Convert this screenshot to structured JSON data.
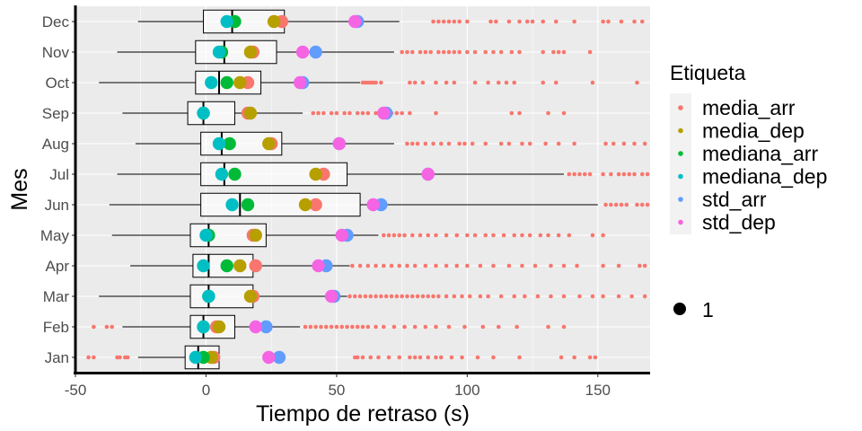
{
  "chart_data": {
    "type": "boxplot",
    "xlabel": "Tiempo de retraso (s)",
    "ylabel": "Mes",
    "xlim": [
      -50,
      170
    ],
    "x_ticks": [
      -50,
      0,
      50,
      100,
      150
    ],
    "x_tick_labels": [
      "-50",
      "0",
      "50",
      "100",
      "150"
    ],
    "grid": true,
    "legend_position": "right",
    "categories": [
      "Jan",
      "Feb",
      "Mar",
      "Apr",
      "May",
      "Jun",
      "Jul",
      "Aug",
      "Sep",
      "Oct",
      "Nov",
      "Dec"
    ],
    "boxes": [
      {
        "month": "Jan",
        "whisker_low": -26,
        "q1": -8,
        "median": -3,
        "q3": 5,
        "whisker_high": 5
      },
      {
        "month": "Feb",
        "whisker_low": -32,
        "q1": -6,
        "median": -1,
        "q3": 11,
        "whisker_high": 36
      },
      {
        "month": "Mar",
        "whisker_low": -41,
        "q1": -6,
        "median": 1,
        "q3": 18,
        "whisker_high": 54
      },
      {
        "month": "Apr",
        "whisker_low": -29,
        "q1": -5,
        "median": 1,
        "q3": 18,
        "whisker_high": 55
      },
      {
        "month": "May",
        "whisker_low": -36,
        "q1": -6,
        "median": 1,
        "q3": 23,
        "whisker_high": 66
      },
      {
        "month": "Jun",
        "whisker_low": -37,
        "q1": -2,
        "median": 13,
        "q3": 59,
        "whisker_high": 150
      },
      {
        "month": "Jul",
        "whisker_low": -34,
        "q1": -2,
        "median": 7,
        "q3": 54,
        "whisker_high": 137
      },
      {
        "month": "Aug",
        "whisker_low": -27,
        "q1": -2,
        "median": 6,
        "q3": 29,
        "whisker_high": 72
      },
      {
        "month": "Sep",
        "whisker_low": -32,
        "q1": -7,
        "median": -1,
        "q3": 11,
        "whisker_high": 37
      },
      {
        "month": "Oct",
        "whisker_low": -41,
        "q1": -4,
        "median": 5,
        "q3": 21,
        "whisker_high": 59
      },
      {
        "month": "Nov",
        "whisker_low": -34,
        "q1": -4,
        "median": 7,
        "q3": 27,
        "whisker_high": 72
      },
      {
        "month": "Dec",
        "whisker_low": -26,
        "q1": -1,
        "median": 10,
        "q3": 30,
        "whisker_high": 74
      }
    ],
    "outliers": [
      {
        "month": "Jan",
        "values": [
          -45,
          -43,
          -34,
          -33,
          -31,
          -30,
          57,
          58,
          60,
          63,
          66,
          70,
          74,
          78,
          80,
          82,
          85,
          88,
          90,
          94,
          98,
          104,
          110,
          120,
          136,
          141,
          147,
          149
        ]
      },
      {
        "month": "Feb",
        "values": [
          -43,
          -38,
          -36,
          38,
          40,
          42,
          44,
          46,
          48,
          50,
          52,
          54,
          56,
          58,
          60,
          62,
          65,
          68,
          72,
          76,
          80,
          84,
          88,
          93,
          99,
          106,
          112,
          119,
          131,
          137
        ]
      },
      {
        "month": "Mar",
        "values": [
          55,
          57,
          59,
          61,
          63,
          65,
          67,
          69,
          71,
          73,
          75,
          77,
          79,
          81,
          83,
          85,
          87,
          89,
          92,
          95,
          98,
          101,
          105,
          108,
          113,
          118,
          122,
          127,
          132,
          137,
          143,
          148,
          152,
          158,
          163,
          168
        ]
      },
      {
        "month": "Apr",
        "values": [
          56,
          59,
          62,
          65,
          68,
          71,
          74,
          77,
          80,
          84,
          88,
          92,
          96,
          100,
          105,
          110,
          116,
          121,
          126,
          132,
          137,
          142,
          152,
          158,
          166,
          168
        ]
      },
      {
        "month": "May",
        "values": [
          68,
          70,
          72,
          74,
          76,
          79,
          82,
          85,
          88,
          92,
          96,
          100,
          103,
          107,
          110,
          114,
          118,
          121,
          124,
          128,
          131,
          135,
          139,
          148,
          152
        ]
      },
      {
        "month": "Jun",
        "values": [
          153,
          155,
          157,
          159,
          161,
          165,
          167,
          169
        ]
      },
      {
        "month": "Jul",
        "values": [
          139,
          141,
          143,
          145,
          147,
          152,
          155,
          158,
          160,
          162,
          164,
          167,
          169
        ]
      },
      {
        "month": "Aug",
        "values": [
          77,
          79,
          81,
          84,
          87,
          90,
          93,
          97,
          99,
          102,
          107,
          113,
          116,
          121,
          124,
          130,
          135,
          141,
          153,
          156,
          160,
          164,
          168
        ]
      },
      {
        "month": "Sep",
        "values": [
          41,
          43,
          45,
          48,
          50,
          53,
          55,
          58,
          60,
          62,
          65,
          67,
          71,
          73,
          75,
          78,
          88,
          117,
          120,
          131,
          137
        ]
      },
      {
        "month": "Oct",
        "values": [
          60,
          61,
          62,
          63,
          64,
          65,
          67,
          78,
          80,
          83,
          88,
          92,
          95,
          103,
          108,
          112,
          115,
          118,
          129,
          134,
          148,
          165
        ]
      },
      {
        "month": "Nov",
        "values": [
          75,
          77,
          79,
          82,
          84,
          86,
          89,
          91,
          93,
          95,
          97,
          100,
          103,
          107,
          110,
          113,
          117,
          120,
          129,
          133,
          135,
          137,
          147
        ]
      },
      {
        "month": "Dec",
        "values": [
          87,
          89,
          91,
          93,
          95,
          97,
          100,
          109,
          111,
          116,
          120,
          123,
          125,
          129,
          134,
          141,
          152,
          154,
          159,
          164,
          167
        ]
      }
    ],
    "stat_series": [
      {
        "name": "media_arr",
        "color": "#F8766D",
        "values": [
          3,
          4,
          18,
          19,
          18,
          42,
          45,
          25,
          16,
          16,
          18,
          29
        ]
      },
      {
        "name": "media_dep",
        "color": "#B79F00",
        "values": [
          2,
          5,
          17,
          13,
          19,
          38,
          42,
          24,
          17,
          13,
          17,
          26
        ]
      },
      {
        "name": "mediana_arr",
        "color": "#00BA38",
        "values": [
          -1,
          -1,
          1,
          8,
          1,
          16,
          11,
          9,
          -1,
          8,
          6,
          11
        ]
      },
      {
        "name": "mediana_dep",
        "color": "#00BFC4",
        "values": [
          -4,
          -1,
          1,
          -1,
          0,
          10,
          6,
          5,
          -1,
          2,
          5,
          8
        ]
      },
      {
        "name": "std_arr",
        "color": "#619CFF",
        "values": [
          28,
          23,
          49,
          46,
          54,
          67,
          85,
          51,
          69,
          37,
          42,
          58
        ]
      },
      {
        "name": "std_dep",
        "color": "#F564E3",
        "values": [
          24,
          19,
          48,
          43,
          52,
          64,
          85,
          51,
          68,
          36,
          37,
          57
        ]
      }
    ],
    "size_legend": {
      "label": "1"
    },
    "legend_title": "Etiqueta"
  }
}
